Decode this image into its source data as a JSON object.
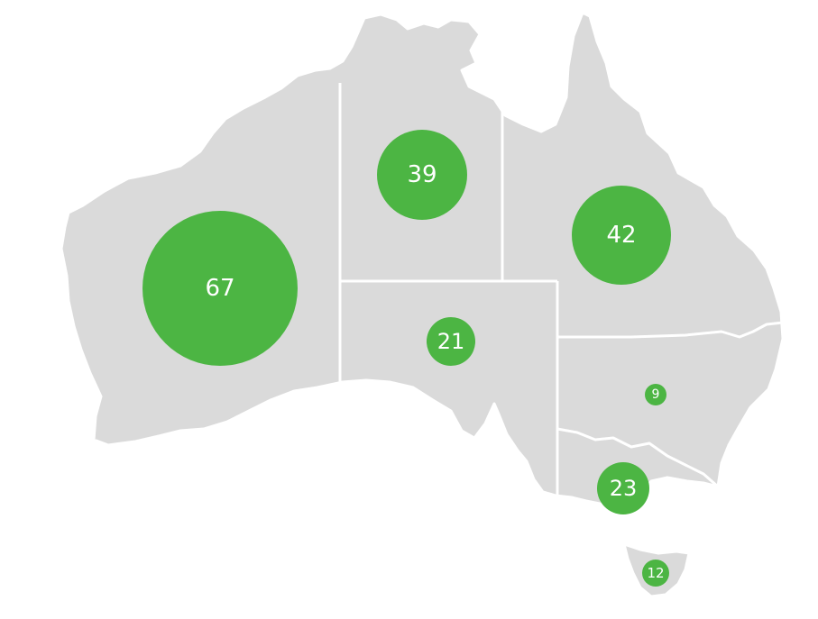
{
  "colors": {
    "land": "#dadada",
    "border": "#ffffff",
    "bubble": "#4cb543",
    "label": "#ffffff"
  },
  "bubbles": [
    {
      "id": "wa",
      "value": "67"
    },
    {
      "id": "nt",
      "value": "39"
    },
    {
      "id": "qld",
      "value": "42"
    },
    {
      "id": "sa",
      "value": "21"
    },
    {
      "id": "nsw",
      "value": "9"
    },
    {
      "id": "vic",
      "value": "23"
    },
    {
      "id": "tas",
      "value": "12"
    }
  ]
}
